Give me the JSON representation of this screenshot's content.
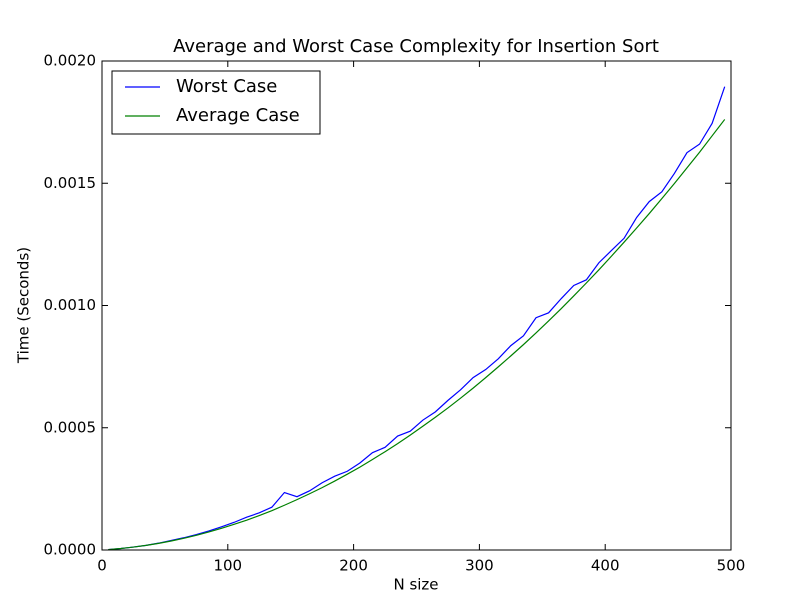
{
  "chart_data": {
    "type": "line",
    "title": "Average and Worst Case Complexity for Insertion Sort",
    "xlabel": "N size",
    "ylabel": "Time (Seconds)",
    "x": [
      5,
      15,
      25,
      35,
      45,
      55,
      65,
      75,
      85,
      95,
      105,
      115,
      125,
      135,
      145,
      155,
      165,
      175,
      185,
      195,
      205,
      215,
      225,
      235,
      245,
      255,
      265,
      275,
      285,
      295,
      305,
      315,
      325,
      335,
      345,
      355,
      365,
      375,
      385,
      395,
      405,
      415,
      425,
      435,
      445,
      455,
      465,
      475,
      485,
      495
    ],
    "series": [
      {
        "name": "Worst Case",
        "color": "#0000ff",
        "values": [
          1.7e-06,
          6.1e-06,
          1.2e-05,
          1.9e-05,
          2.8e-05,
          3.9e-05,
          5e-05,
          6.3e-05,
          7.8e-05,
          9.5e-05,
          0.000113,
          0.000134,
          0.000152,
          0.000175,
          0.000235,
          0.000218,
          0.000242,
          0.000275,
          0.000302,
          0.000322,
          0.000356,
          0.000398,
          0.00042,
          0.000466,
          0.000486,
          0.000531,
          0.000565,
          0.000612,
          0.000655,
          0.000705,
          0.000738,
          0.000782,
          0.000836,
          0.000876,
          0.00095,
          0.00097,
          0.001028,
          0.001082,
          0.001105,
          0.001175,
          0.001225,
          0.001275,
          0.00136,
          0.001425,
          0.001465,
          0.00154,
          0.001625,
          0.00166,
          0.001745,
          0.001895
        ]
      },
      {
        "name": "Average Case",
        "color": "#008000",
        "values": [
          1.7e-06,
          6.1e-06,
          1.19e-05,
          1.89e-05,
          2.72e-05,
          3.69e-05,
          4.79e-05,
          6.02e-05,
          7.37e-05,
          8.87e-05,
          0.000105,
          0.000122,
          0.000141,
          0.000161,
          0.000183,
          0.000206,
          0.00023,
          0.000255,
          0.000282,
          0.00031,
          0.000339,
          0.00037,
          0.000402,
          0.000435,
          0.00047,
          0.000506,
          0.000543,
          0.000581,
          0.000621,
          0.000662,
          0.000705,
          0.000749,
          0.000794,
          0.00084,
          0.000888,
          0.000937,
          0.000987,
          0.001039,
          0.001092,
          0.001146,
          0.001202,
          0.001259,
          0.001317,
          0.001376,
          0.001437,
          0.001499,
          0.001563,
          0.001627,
          0.001694,
          0.001761
        ]
      }
    ],
    "xlim": [
      0,
      500
    ],
    "xticks": [
      0,
      100,
      200,
      300,
      400,
      500
    ],
    "ylim": [
      0,
      0.002
    ],
    "yticks": [
      {
        "value": 0,
        "label": "0.0000"
      },
      {
        "value": 0.0005,
        "label": "0.0005"
      },
      {
        "value": 0.001,
        "label": "0.0010"
      },
      {
        "value": 0.0015,
        "label": "0.0015"
      },
      {
        "value": 0.002,
        "label": "0.0020"
      }
    ],
    "legend": "upper left"
  }
}
